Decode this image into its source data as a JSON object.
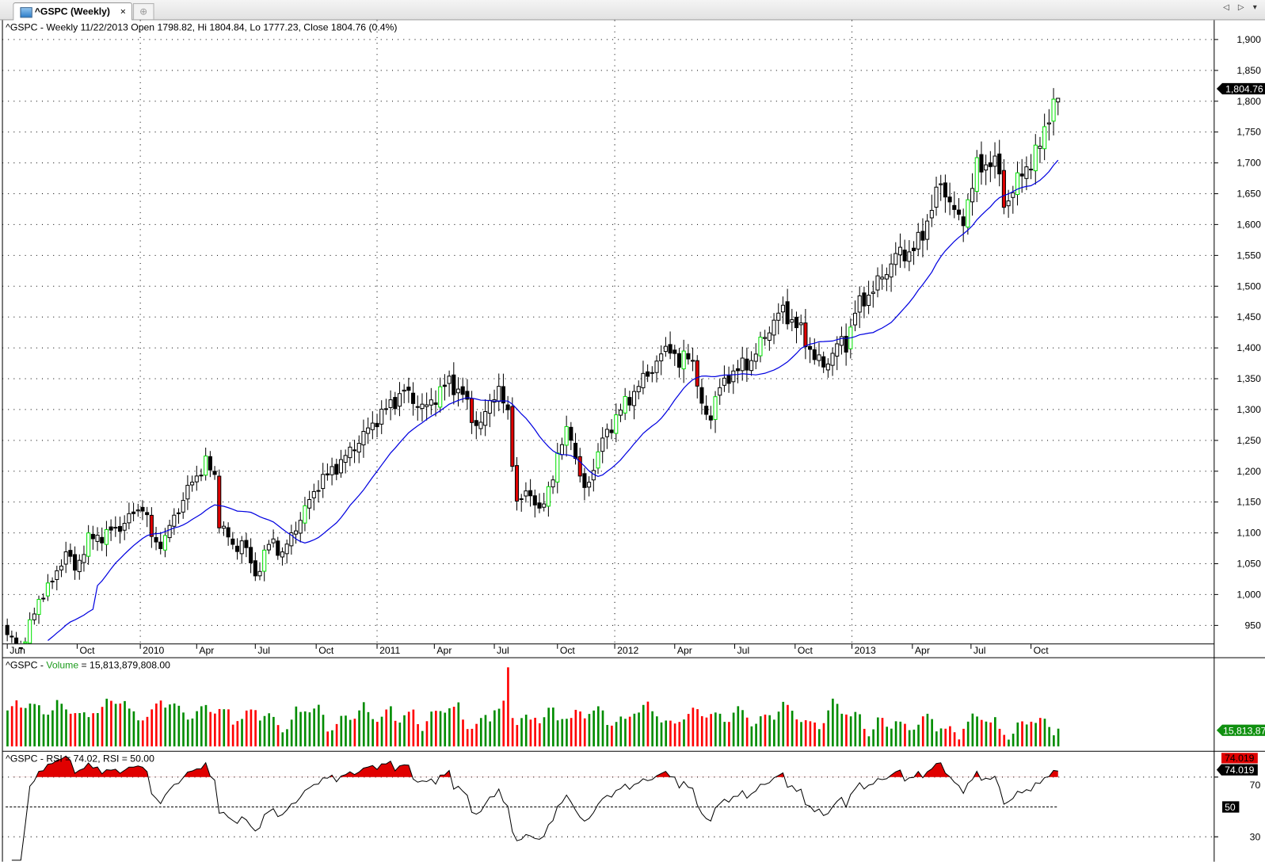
{
  "tab": {
    "title": "^GSPC (Weekly)",
    "close_glyph": "×",
    "new_tab_glyph": "⊕",
    "nav": "◁ ▷ ▾"
  },
  "price_panel": {
    "header": "^GSPC - Weekly 11/22/2013 Open 1798.82, Hi 1804.84, Lo 1777.23, Close 1804.76 (0.4%)",
    "last_label": "1,804.76"
  },
  "volume_panel": {
    "prefix": "^GSPC - ",
    "name": "Volume",
    "suffix": " = 15,813,879,808.00",
    "last_label": "15,813,87"
  },
  "rsi_panel": {
    "header": "^GSPC - RSI = 74.02, RSI = 50.00",
    "badge_red": "74.019",
    "badge_black": "74.019",
    "level_label": "50",
    "tick_70": "70",
    "tick_30": "30"
  },
  "colors": {
    "up_highlight": "#00e000",
    "down_highlight": "#e00000",
    "ma": "#0000e0",
    "vol_up": "#008c00",
    "vol_down": "#ff0000",
    "rsi_fill": "#e00000"
  },
  "chart_data": {
    "type": "candlestick",
    "title": "^GSPC - Weekly",
    "y_ticks": [
      1900,
      1850,
      1800,
      1750,
      1700,
      1650,
      1600,
      1550,
      1500,
      1450,
      1400,
      1350,
      1300,
      1250,
      1200,
      1150,
      1100,
      1050,
      1000,
      950
    ],
    "y_tick_labels": [
      "1,900",
      "1,850",
      "1,800",
      "1,750",
      "1,700",
      "1,650",
      "1,600",
      "1,550",
      "1,500",
      "1,450",
      "1,400",
      "1,350",
      "1,300",
      "1,250",
      "1,200",
      "1,150",
      "1,100",
      "1,050",
      "1,000",
      "950"
    ],
    "ylim": [
      915,
      1915
    ],
    "weeks": 234,
    "x_labels": [
      {
        "t": "Jun",
        "w": 0
      },
      {
        "t": "Oct",
        "w": 15.5
      },
      {
        "t": "2010",
        "w": 29.5
      },
      {
        "t": "Apr",
        "w": 42
      },
      {
        "t": "Jul",
        "w": 55
      },
      {
        "t": "Oct",
        "w": 68.5
      },
      {
        "t": "2011",
        "w": 82
      },
      {
        "t": "Apr",
        "w": 94.7
      },
      {
        "t": "Jul",
        "w": 108
      },
      {
        "t": "Oct",
        "w": 122
      },
      {
        "t": "2012",
        "w": 134.7
      },
      {
        "t": "Apr",
        "w": 148
      },
      {
        "t": "Jul",
        "w": 161.3
      },
      {
        "t": "Oct",
        "w": 174.7
      },
      {
        "t": "2013",
        "w": 187.3
      },
      {
        "t": "Apr",
        "w": 200.7
      },
      {
        "t": "Jul",
        "w": 213.7
      },
      {
        "t": "Oct",
        "w": 227
      }
    ],
    "year_grid_weeks": [
      29.5,
      82,
      134.7,
      187.3
    ],
    "close_anchors": [
      [
        0,
        935
      ],
      [
        3,
        905
      ],
      [
        4,
        930
      ],
      [
        7.5,
        1000
      ],
      [
        10,
        1020
      ],
      [
        13,
        1070
      ],
      [
        15,
        1040
      ],
      [
        18,
        1090
      ],
      [
        21,
        1095
      ],
      [
        25,
        1110
      ],
      [
        30,
        1145
      ],
      [
        32.6,
        1080
      ],
      [
        35,
        1090
      ],
      [
        36,
        1110
      ],
      [
        40,
        1170
      ],
      [
        44,
        1215
      ],
      [
        46,
        1190
      ],
      [
        47,
        1120
      ],
      [
        50.5,
        1070
      ],
      [
        52,
        1090
      ],
      [
        55,
        1030
      ],
      [
        58.5,
        1090
      ],
      [
        61,
        1065
      ],
      [
        64,
        1110
      ],
      [
        69,
        1180
      ],
      [
        74,
        1215
      ],
      [
        78,
        1250
      ],
      [
        82.6,
        1290
      ],
      [
        88,
        1330
      ],
      [
        92.5,
        1300
      ],
      [
        96,
        1330
      ],
      [
        98,
        1345
      ],
      [
        101.5,
        1320
      ],
      [
        103,
        1285
      ],
      [
        105,
        1275
      ],
      [
        108.6,
        1340
      ],
      [
        111,
        1290
      ],
      [
        113,
        1150
      ],
      [
        116,
        1165
      ],
      [
        118.5,
        1130
      ],
      [
        122,
        1225
      ],
      [
        124.7,
        1275
      ],
      [
        126,
        1220
      ],
      [
        128,
        1165
      ],
      [
        132,
        1250
      ],
      [
        136,
        1300
      ],
      [
        141.7,
        1355
      ],
      [
        147,
        1405
      ],
      [
        149,
        1370
      ],
      [
        151.5,
        1400
      ],
      [
        154,
        1300
      ],
      [
        156,
        1290
      ],
      [
        157,
        1320
      ],
      [
        160,
        1355
      ],
      [
        165,
        1380
      ],
      [
        170,
        1445
      ],
      [
        172,
        1460
      ],
      [
        175.7,
        1430
      ],
      [
        179,
        1385
      ],
      [
        181,
        1370
      ],
      [
        184.6,
        1410
      ],
      [
        186,
        1405
      ],
      [
        188,
        1460
      ],
      [
        193.6,
        1510
      ],
      [
        197,
        1550
      ],
      [
        200,
        1555
      ],
      [
        202.6,
        1575
      ],
      [
        205,
        1630
      ],
      [
        207,
        1665
      ],
      [
        209,
        1640
      ],
      [
        211.5,
        1595
      ],
      [
        213,
        1640
      ],
      [
        215,
        1690
      ],
      [
        218.6,
        1705
      ],
      [
        220,
        1680
      ],
      [
        221,
        1635
      ],
      [
        223,
        1650
      ],
      [
        225,
        1690
      ],
      [
        227.6,
        1700
      ],
      [
        230,
        1760
      ],
      [
        232,
        1790
      ],
      [
        233,
        1804.76
      ]
    ],
    "last_candle": {
      "open": 1798.82,
      "high": 1804.84,
      "low": 1777.23,
      "close": 1804.76
    },
    "ma_period": 20,
    "volume_last": 15813879808,
    "volume_spike_week": 111,
    "rsi_period": 14,
    "rsi_last": 74.02,
    "rsi_levels": [
      70,
      50,
      30
    ]
  }
}
